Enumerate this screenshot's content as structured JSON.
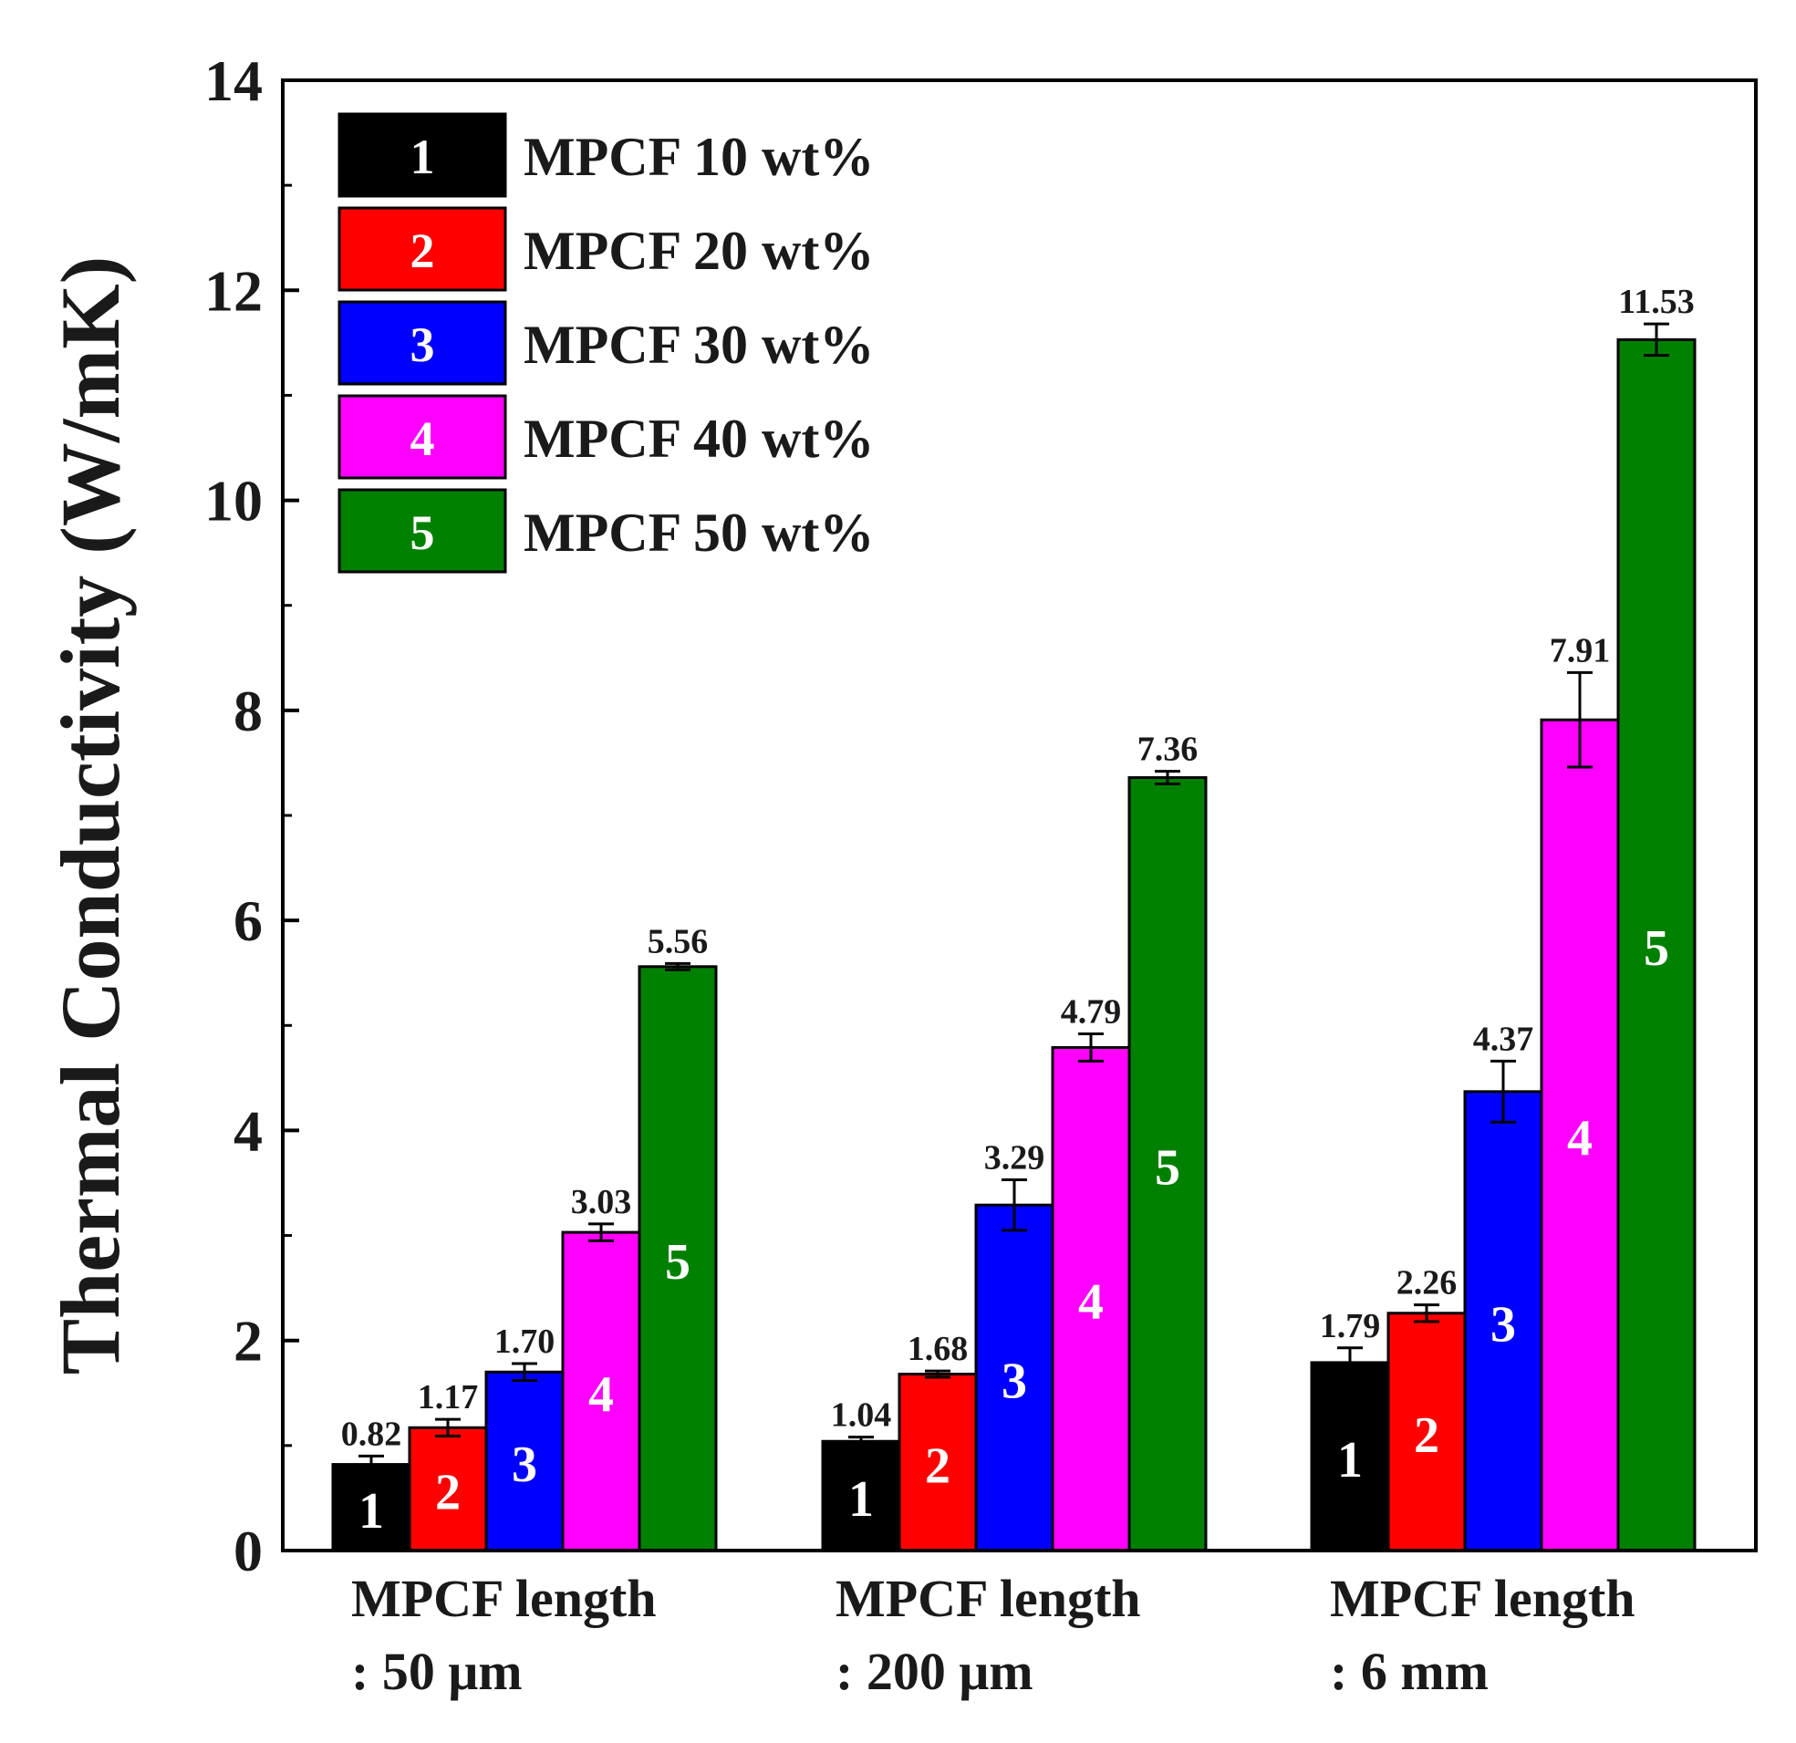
{
  "chart_data": {
    "type": "bar",
    "title": "",
    "xlabel": "",
    "ylabel": "Thermal Conductivity (W/mK)",
    "ylim": [
      0,
      14
    ],
    "y_major_ticks": [
      0,
      2,
      4,
      6,
      8,
      10,
      12,
      14
    ],
    "y_minor_ticks": [
      1,
      3,
      5,
      7,
      9,
      11,
      13
    ],
    "grid": false,
    "legend_position": "top-left",
    "categories": [
      {
        "line1": "MPCF length",
        "line2": ": 50 μm"
      },
      {
        "line1": "MPCF length",
        "line2": ": 200 μm"
      },
      {
        "line1": "MPCF length",
        "line2": ": 6 mm"
      }
    ],
    "series": [
      {
        "name": "MPCF 10 wt%",
        "marker": "1",
        "color": "#000000",
        "label_color": "#ffffff",
        "values": [
          0.82,
          1.04,
          1.79
        ],
        "value_labels": [
          "0.82",
          "1.04",
          "1.79"
        ],
        "errors": [
          0.08,
          0.04,
          0.14
        ]
      },
      {
        "name": "MPCF 20 wt%",
        "marker": "2",
        "color": "#ff0000",
        "label_color": "#ffffff",
        "values": [
          1.17,
          1.68,
          2.26
        ],
        "value_labels": [
          "1.17",
          "1.68",
          "2.26"
        ],
        "errors": [
          0.08,
          0.03,
          0.08
        ]
      },
      {
        "name": "MPCF 30 wt%",
        "marker": "3",
        "color": "#0000ff",
        "label_color": "#ffffff",
        "values": [
          1.7,
          3.29,
          4.37
        ],
        "value_labels": [
          "1.70",
          "3.29",
          "4.37"
        ],
        "errors": [
          0.08,
          0.24,
          0.29
        ]
      },
      {
        "name": "MPCF 40 wt%",
        "marker": "4",
        "color": "#ff00ff",
        "label_color": "#ffffff",
        "values": [
          3.03,
          4.79,
          7.91
        ],
        "value_labels": [
          "3.03",
          "4.79",
          "7.91"
        ],
        "errors": [
          0.08,
          0.13,
          0.45
        ]
      },
      {
        "name": "MPCF 50 wt%",
        "marker": "5",
        "color": "#008000",
        "label_color": "#ffffff",
        "values": [
          5.56,
          7.36,
          11.53
        ],
        "value_labels": [
          "5.56",
          "7.36",
          "11.53"
        ],
        "errors": [
          0.03,
          0.06,
          0.15
        ]
      }
    ]
  }
}
